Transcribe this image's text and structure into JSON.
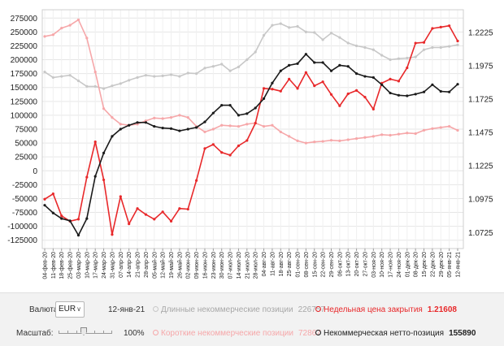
{
  "chart_data": {
    "type": "line",
    "dates": [
      "04-фев-20",
      "11-фев-20",
      "18-фев-20",
      "25-фев-20",
      "03-мар-20",
      "10-мар-20",
      "17-мар-20",
      "24-мар-20",
      "31-мар-20",
      "07-апр-20",
      "14-апр-20",
      "21-апр-20",
      "28-апр-20",
      "05-май-20",
      "12-май-20",
      "19-май-20",
      "26-май-20",
      "02-июн-20",
      "09-июн-20",
      "16-июн-20",
      "23-июн-20",
      "30-июн-20",
      "07-июл-20",
      "14-июл-20",
      "21-июл-20",
      "28-июл-20",
      "04-авг-20",
      "11-авг-20",
      "18-авг-20",
      "25-авг-20",
      "01-сен-20",
      "08-сен-20",
      "15-сен-20",
      "22-сен-20",
      "29-сен-20",
      "06-окт-20",
      "13-окт-20",
      "20-окт-20",
      "27-окт-20",
      "03-ноя-20",
      "10-ноя-20",
      "17-ноя-20",
      "24-ноя-20",
      "01-дек-20",
      "08-дек-20",
      "15-дек-20",
      "22-дек-20",
      "29-дек-20",
      "05-янв-21",
      "12-янв-21"
    ],
    "xtick_labels": [
      "04-фев-20",
      "11-фев-20",
      "18-фев-20",
      "25-фев-20",
      "03-мар-20",
      "10-мар-20",
      "17-мар-20",
      "24-мар-20",
      "31-мар-20",
      "07-апр-20",
      "14-апр-20",
      "21-апр-20",
      "28-апр-20",
      "05-май-20",
      "12-май-20",
      "19-май-20",
      "26-май-20",
      "02-июн-20",
      "09-июн-20",
      "16-июн-20",
      "23-июн-20",
      "30-июн-20",
      "07-июл-20",
      "14-июл-20",
      "21-июл-20",
      "28-июл-20",
      "04-авг-20",
      "11-авг-20",
      "18-авг-20",
      "25-авг-20",
      "01-сен-20",
      "08-сен-20",
      "15-сен-20",
      "22-сен-20",
      "29-сен-20",
      "06-окт-20",
      "13-окт-20",
      "20-окт-20",
      "27-окт-20",
      "03-ноя-20",
      "10-ноя-20",
      "17-ноя-20",
      "24-ноя-20",
      "01-дек-20",
      "08-дек-20",
      "15-дек-20",
      "22-дек-20",
      "29-дек-20",
      "05-янв-21",
      "12-янв-21"
    ],
    "y_left_ticks": [
      -125000,
      -100000,
      -75000,
      -50000,
      -25000,
      0,
      25000,
      50000,
      75000,
      100000,
      125000,
      150000,
      175000,
      200000,
      225000,
      250000,
      275000
    ],
    "y_left_labels": [
      "-125000",
      "-100000",
      "-75000",
      "-50000",
      "-25000",
      "0",
      "25000",
      "50000",
      "75000",
      "100000",
      "125000",
      "150000",
      "175000",
      "200000",
      "225000",
      "250000",
      "275000"
    ],
    "y_left_range": [
      -140000,
      290000
    ],
    "y_right_ticks": [
      1.0725,
      1.0975,
      1.1225,
      1.1475,
      1.1725,
      1.1975,
      1.2225
    ],
    "y_right_labels": [
      "1.0725",
      "1.0975",
      "1.1225",
      "1.1475",
      "1.1725",
      "1.1975",
      "1.2225"
    ],
    "y_right_range": [
      1.0605,
      1.2395
    ],
    "grid": true,
    "series": [
      {
        "name": "Длинные некоммерческие позиции",
        "axis": "left",
        "color": "#c8c8c8",
        "values": [
          178000,
          168000,
          170000,
          172000,
          162000,
          152000,
          152000,
          148000,
          153000,
          157000,
          163000,
          168000,
          172000,
          170000,
          171000,
          173000,
          170000,
          176000,
          175000,
          185000,
          188000,
          192000,
          180000,
          187000,
          200000,
          214000,
          244000,
          262000,
          265000,
          258000,
          260000,
          250000,
          249000,
          236000,
          248000,
          240000,
          230000,
          225000,
          222000,
          218000,
          208000,
          200000,
          202000,
          203000,
          205000,
          218000,
          222000,
          222000,
          224000,
          226757
        ]
      },
      {
        "name": "Короткие некоммерческие позиции",
        "axis": "left",
        "color": "#f6a7a9",
        "values": [
          242000,
          245000,
          257000,
          262000,
          272000,
          239000,
          178000,
          112000,
          96000,
          84000,
          82000,
          84000,
          90000,
          95000,
          94000,
          96000,
          100000,
          96000,
          80000,
          70000,
          75000,
          82000,
          81000,
          80000,
          84000,
          86000,
          80000,
          82000,
          70000,
          62000,
          54000,
          50000,
          52000,
          53000,
          55000,
          54000,
          56000,
          58000,
          60000,
          62000,
          65000,
          64000,
          66000,
          68000,
          67000,
          73000,
          76000,
          78000,
          80000,
          72867
        ]
      },
      {
        "name": "Недельная цена закрытия",
        "axis": "right",
        "color": "#e8282a",
        "values": [
          1.0975,
          1.1015,
          1.085,
          1.081,
          1.0825,
          1.114,
          1.1405,
          1.112,
          1.071,
          1.0995,
          1.079,
          1.0905,
          1.086,
          1.0825,
          1.088,
          1.081,
          1.0905,
          1.09,
          1.1115,
          1.1355,
          1.1385,
          1.1325,
          1.1305,
          1.1375,
          1.1415,
          1.1545,
          1.1805,
          1.18,
          1.1785,
          1.1875,
          1.1805,
          1.1925,
          1.1825,
          1.1855,
          1.176,
          1.1675,
          1.1765,
          1.179,
          1.174,
          1.165,
          1.1845,
          1.1875,
          1.186,
          1.196,
          1.2145,
          1.215,
          1.2255,
          1.2265,
          1.2275,
          1.21608
        ]
      },
      {
        "name": "Некоммерческая нетто-позиция",
        "axis": "left",
        "color": "#1a1a1a",
        "values": [
          -62000,
          -76000,
          -86000,
          -90000,
          -116000,
          -86000,
          -10000,
          32000,
          62000,
          75000,
          82000,
          87000,
          87000,
          80000,
          77000,
          76000,
          72000,
          75000,
          78000,
          88000,
          104000,
          118000,
          118000,
          100000,
          103000,
          113000,
          130000,
          158000,
          180000,
          190000,
          193000,
          210000,
          195000,
          195000,
          180000,
          190000,
          188000,
          175000,
          170000,
          168000,
          155000,
          140000,
          136000,
          135000,
          138000,
          142000,
          155000,
          143000,
          142000,
          155890
        ]
      }
    ]
  },
  "controls": {
    "currency_label": "Валюта:",
    "currency_value": "EUR",
    "date": "12-янв-21",
    "scale_label": "Масштаб:",
    "scale_value": "100%",
    "scale_level_percent": 100
  },
  "legend": {
    "long": {
      "label": "Длинные некоммерческие позиции",
      "value": "226757"
    },
    "price": {
      "label": "Недельная цена закрытия",
      "value": "1.21608"
    },
    "short": {
      "label": "Короткие некоммерческие позиции",
      "value": "72867"
    },
    "net": {
      "label": "Некоммерческая нетто-позиция",
      "value": "155890"
    }
  }
}
